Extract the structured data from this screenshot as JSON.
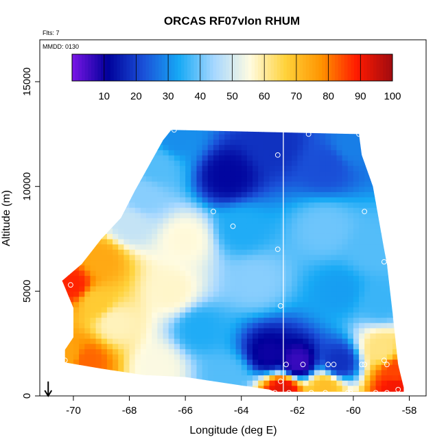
{
  "chart_data": {
    "type": "heatmap",
    "title": "ORCAS RF07vlon RHUM",
    "annotations": [
      "Flts: 7",
      "MMDD: 0130"
    ],
    "xlabel": "Longitude (deg E)",
    "ylabel": "Altitude (m)",
    "xlim": [
      -71.2,
      -57.4
    ],
    "ylim": [
      0,
      17000
    ],
    "x_ticks": [
      -70,
      -68,
      -66,
      -64,
      -62,
      -60,
      -58
    ],
    "y_ticks": [
      0,
      5000,
      10000,
      15000
    ],
    "x_tick_labels": [
      "-70",
      "-68",
      "-66",
      "-64",
      "-62",
      "-60",
      "-58"
    ],
    "y_tick_labels": [
      "0",
      "5000",
      "10000",
      "15000"
    ],
    "colorbar": {
      "range": [
        0,
        100
      ],
      "ticks": [
        10,
        20,
        30,
        40,
        50,
        60,
        70,
        80,
        90,
        100
      ],
      "tick_labels": [
        "10",
        "20",
        "30",
        "40",
        "50",
        "60",
        "70",
        "80",
        "90",
        "100"
      ],
      "colors": [
        "#7a16e6",
        "#00009a",
        "#1a50d8",
        "#17a9f5",
        "#a8d8ff",
        "#fffbe0",
        "#ffd23a",
        "#ff9400",
        "#ff1a00",
        "#a00b10"
      ]
    },
    "vertical_line_x": -62.5,
    "profile_arrow_x": -70.9,
    "domain_outline": [
      [
        -70.3,
        1600
      ],
      [
        -70.3,
        2200
      ],
      [
        -70.0,
        2800
      ],
      [
        -70.0,
        4200
      ],
      [
        -70.4,
        5500
      ],
      [
        -69.7,
        6300
      ],
      [
        -69.0,
        7500
      ],
      [
        -68.3,
        8500
      ],
      [
        -67.8,
        9800
      ],
      [
        -67.3,
        11000
      ],
      [
        -66.8,
        12200
      ],
      [
        -66.5,
        12700
      ],
      [
        -59.8,
        12500
      ],
      [
        -59.7,
        11500
      ],
      [
        -59.3,
        10000
      ],
      [
        -58.9,
        7000
      ],
      [
        -58.8,
        6300
      ],
      [
        -58.6,
        4000
      ],
      [
        -58.4,
        1500
      ],
      [
        -58.2,
        400
      ],
      [
        -58.2,
        200
      ],
      [
        -62.8,
        200
      ],
      [
        -63.0,
        300
      ],
      [
        -64.5,
        600
      ],
      [
        -66.0,
        900
      ],
      [
        -67.5,
        1000
      ],
      [
        -69.0,
        1300
      ],
      [
        -70.3,
        1600
      ]
    ],
    "rh_field_keypoints": [
      {
        "lon": -70.2,
        "alt": 2000,
        "rh": 75
      },
      {
        "lon": -70.0,
        "alt": 5300,
        "rh": 88
      },
      {
        "lon": -69.0,
        "alt": 6500,
        "rh": 74
      },
      {
        "lon": -68.0,
        "alt": 8200,
        "rh": 48
      },
      {
        "lon": -67.5,
        "alt": 9500,
        "rh": 42
      },
      {
        "lon": -67.0,
        "alt": 11000,
        "rh": 38
      },
      {
        "lon": -66.3,
        "alt": 12300,
        "rh": 30
      },
      {
        "lon": -64.5,
        "alt": 10500,
        "rh": 12
      },
      {
        "lon": -62.8,
        "alt": 12000,
        "rh": 18
      },
      {
        "lon": -61.0,
        "alt": 11000,
        "rh": 22
      },
      {
        "lon": -60.0,
        "alt": 12000,
        "rh": 28
      },
      {
        "lon": -66.0,
        "alt": 7500,
        "rh": 56
      },
      {
        "lon": -64.0,
        "alt": 8000,
        "rh": 34
      },
      {
        "lon": -61.0,
        "alt": 8000,
        "rh": 40
      },
      {
        "lon": -59.3,
        "alt": 7000,
        "rh": 38
      },
      {
        "lon": -66.5,
        "alt": 5000,
        "rh": 57
      },
      {
        "lon": -63.5,
        "alt": 5500,
        "rh": 42
      },
      {
        "lon": -60.5,
        "alt": 5000,
        "rh": 32
      },
      {
        "lon": -59.0,
        "alt": 4500,
        "rh": 36
      },
      {
        "lon": -68.5,
        "alt": 3500,
        "rh": 58
      },
      {
        "lon": -65.5,
        "alt": 3200,
        "rh": 34
      },
      {
        "lon": -63.0,
        "alt": 2000,
        "rh": 10
      },
      {
        "lon": -62.0,
        "alt": 1600,
        "rh": 6
      },
      {
        "lon": -60.5,
        "alt": 1600,
        "rh": 18
      },
      {
        "lon": -59.0,
        "alt": 2200,
        "rh": 62
      },
      {
        "lon": -58.5,
        "alt": 1200,
        "rh": 85
      },
      {
        "lon": -58.5,
        "alt": 400,
        "rh": 90
      },
      {
        "lon": -61.0,
        "alt": 400,
        "rh": 70
      },
      {
        "lon": -62.5,
        "alt": 300,
        "rh": 92
      },
      {
        "lon": -64.5,
        "alt": 1000,
        "rh": 38
      },
      {
        "lon": -67.0,
        "alt": 1400,
        "rh": 55
      },
      {
        "lon": -69.5,
        "alt": 1700,
        "rh": 82
      },
      {
        "lon": -69.2,
        "alt": 4500,
        "rh": 68
      }
    ],
    "observation_points": [
      [
        -66.4,
        12700
      ],
      [
        -61.6,
        12500
      ],
      [
        -59.8,
        12500
      ],
      [
        -62.7,
        11500
      ],
      [
        -65.0,
        8800
      ],
      [
        -59.6,
        8800
      ],
      [
        -64.3,
        8100
      ],
      [
        -62.7,
        7000
      ],
      [
        -58.9,
        6400
      ],
      [
        -70.1,
        5300
      ],
      [
        -62.6,
        4300
      ],
      [
        -70.3,
        1700
      ],
      [
        -62.4,
        1500
      ],
      [
        -61.8,
        1500
      ],
      [
        -60.9,
        1500
      ],
      [
        -60.7,
        1500
      ],
      [
        -59.7,
        1500
      ],
      [
        -59.6,
        1500
      ],
      [
        -58.9,
        1700
      ],
      [
        -58.8,
        1500
      ],
      [
        -62.6,
        700
      ],
      [
        -58.4,
        300
      ],
      [
        -62.8,
        150
      ],
      [
        -62.3,
        150
      ],
      [
        -61.5,
        150
      ],
      [
        -61.0,
        150
      ],
      [
        -60.2,
        150
      ],
      [
        -60.1,
        150
      ],
      [
        -59.2,
        150
      ],
      [
        -58.8,
        150
      ]
    ]
  }
}
